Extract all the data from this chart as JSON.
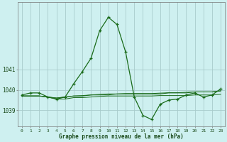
{
  "title": "Graphe pression niveau de la mer (hPa)",
  "background_color": "#cef0f0",
  "grid_color": "#a8cccc",
  "line_color": "#1a6b1a",
  "x_values": [
    0,
    1,
    2,
    3,
    4,
    5,
    6,
    7,
    8,
    9,
    10,
    11,
    12,
    13,
    14,
    15,
    16,
    17,
    18,
    19,
    20,
    21,
    22,
    23
  ],
  "y_main": [
    1039.75,
    1039.85,
    1039.85,
    1039.65,
    1039.55,
    1039.65,
    1040.3,
    1040.9,
    1041.55,
    1042.9,
    1043.55,
    1043.2,
    1041.85,
    1039.65,
    1038.75,
    1038.55,
    1039.3,
    1039.5,
    1039.55,
    1039.75,
    1039.85,
    1039.65,
    1039.75,
    1040.05
  ],
  "y_flat1": [
    1039.7,
    1039.7,
    1039.7,
    1039.65,
    1039.6,
    1039.65,
    1039.7,
    1039.7,
    1039.75,
    1039.75,
    1039.75,
    1039.8,
    1039.8,
    1039.8,
    1039.8,
    1039.8,
    1039.8,
    1039.85,
    1039.85,
    1039.85,
    1039.9,
    1039.9,
    1039.9,
    1039.95
  ],
  "y_flat2": [
    1039.7,
    1039.7,
    1039.7,
    1039.65,
    1039.6,
    1039.65,
    1039.7,
    1039.72,
    1039.75,
    1039.78,
    1039.8,
    1039.8,
    1039.82,
    1039.82,
    1039.82,
    1039.82,
    1039.84,
    1039.86,
    1039.86,
    1039.88,
    1039.9,
    1039.9,
    1039.9,
    1039.95
  ],
  "y_flat3": [
    1039.7,
    1039.7,
    1039.7,
    1039.65,
    1039.55,
    1039.55,
    1039.62,
    1039.62,
    1039.65,
    1039.68,
    1039.7,
    1039.7,
    1039.7,
    1039.7,
    1039.7,
    1039.7,
    1039.72,
    1039.72,
    1039.72,
    1039.72,
    1039.75,
    1039.75,
    1039.75,
    1039.78
  ],
  "yticks": [
    1039,
    1040,
    1041
  ],
  "ylim": [
    1038.2,
    1044.3
  ],
  "xlim": [
    -0.5,
    23.5
  ],
  "figsize": [
    3.2,
    2.0
  ],
  "dpi": 100
}
